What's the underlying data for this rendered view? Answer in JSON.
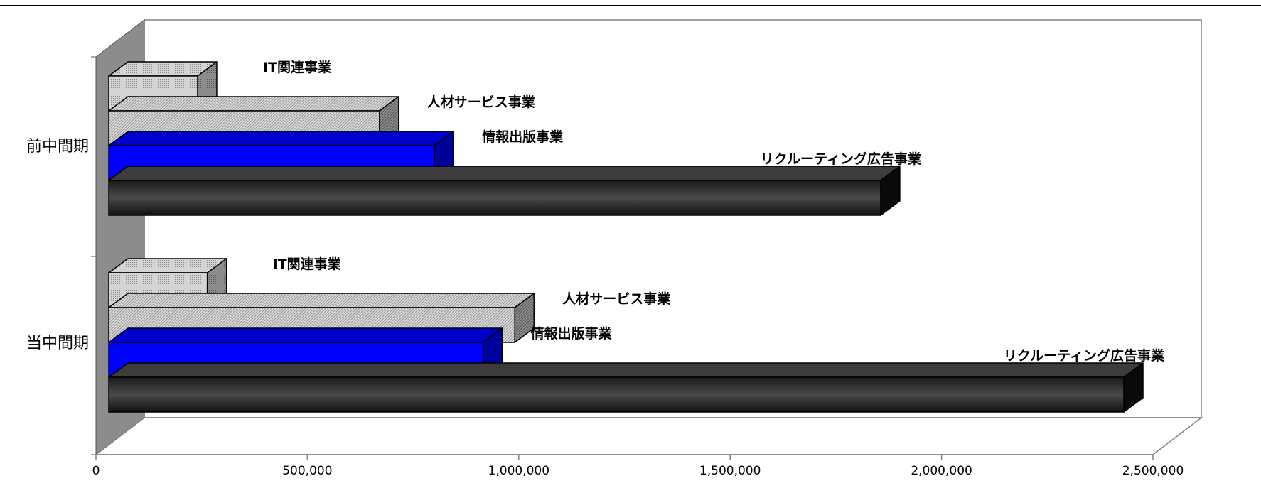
{
  "chart_data": {
    "type": "bar",
    "orientation": "horizontal",
    "style": "3d-clustered",
    "categories": [
      "前中間期",
      "当中間期"
    ],
    "series": [
      {
        "name": "IT関連事業",
        "values": [
          210000,
          233000
        ],
        "color": "#c8c8c8",
        "pattern": "fine-dots"
      },
      {
        "name": "人材サービス事業",
        "values": [
          640000,
          960000
        ],
        "color": "#c8c8c8",
        "pattern": "diagonal"
      },
      {
        "name": "情報出版事業",
        "values": [
          770000,
          885000
        ],
        "color": "#0000ff",
        "pattern": "solid"
      },
      {
        "name": "リクルーティング広告事業",
        "values": [
          1825000,
          2400000
        ],
        "color": "#2a2a2a",
        "pattern": "gradient"
      }
    ],
    "data_labels": {
      "前中間期": [
        "IT関連事業",
        "人材サービス事業",
        "情報出版事業",
        "リクルーティング広告事業"
      ],
      "当中間期": [
        "IT関連事業",
        "人材サービス事業",
        "情報出版事業",
        "リクルーティング広告事業"
      ]
    },
    "x_ticks": [
      "0",
      "500,000",
      "1,000,000",
      "1,500,000",
      "2,000,000",
      "2,500,000"
    ],
    "xlim": [
      0,
      2500000
    ],
    "grid": false,
    "legend": "none"
  }
}
